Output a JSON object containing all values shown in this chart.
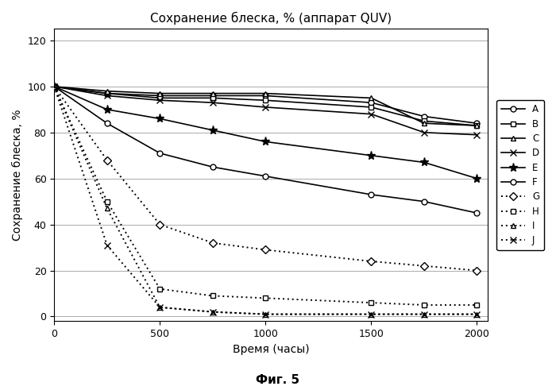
{
  "title": "Сохранение блеска, % (аппарат QUV)",
  "xlabel": "Время (часы)",
  "ylabel": "Сохранение блеска, %",
  "caption": "Фиг. 5",
  "xlim": [
    0,
    2050
  ],
  "ylim": [
    -2,
    125
  ],
  "xticks": [
    0,
    500,
    1000,
    1500,
    2000
  ],
  "yticks": [
    0,
    20,
    40,
    60,
    80,
    100,
    120
  ],
  "series": {
    "A": {
      "x": [
        0,
        250,
        500,
        750,
        1000,
        1500,
        1750,
        2000
      ],
      "y": [
        100,
        97,
        96,
        96,
        96,
        93,
        87,
        84
      ],
      "linestyle": "solid",
      "marker": "o",
      "markersize": 5,
      "open": true,
      "linewidth": 1.2
    },
    "B": {
      "x": [
        0,
        250,
        500,
        750,
        1000,
        1500,
        1750,
        2000
      ],
      "y": [
        100,
        97,
        95,
        95,
        94,
        91,
        85,
        83
      ],
      "linestyle": "solid",
      "marker": "s",
      "markersize": 5,
      "open": true,
      "linewidth": 1.2
    },
    "C": {
      "x": [
        0,
        250,
        500,
        750,
        1000,
        1500,
        1750,
        2000
      ],
      "y": [
        100,
        98,
        97,
        97,
        97,
        95,
        84,
        83
      ],
      "linestyle": "solid",
      "marker": "^",
      "markersize": 5,
      "open": true,
      "linewidth": 1.2
    },
    "D": {
      "x": [
        0,
        250,
        500,
        750,
        1000,
        1500,
        1750,
        2000
      ],
      "y": [
        100,
        96,
        94,
        93,
        91,
        88,
        80,
        79
      ],
      "linestyle": "solid",
      "marker": "x",
      "markersize": 6,
      "open": false,
      "linewidth": 1.2
    },
    "E": {
      "x": [
        0,
        250,
        500,
        750,
        1000,
        1500,
        1750,
        2000
      ],
      "y": [
        100,
        90,
        86,
        81,
        76,
        70,
        67,
        60
      ],
      "linestyle": "solid",
      "marker": "*",
      "markersize": 8,
      "open": false,
      "linewidth": 1.2
    },
    "F": {
      "x": [
        0,
        250,
        500,
        750,
        1000,
        1500,
        1750,
        2000
      ],
      "y": [
        100,
        84,
        71,
        65,
        61,
        53,
        50,
        45
      ],
      "linestyle": "solid",
      "marker": "o",
      "markersize": 5,
      "open": true,
      "linewidth": 1.2
    },
    "G": {
      "x": [
        0,
        250,
        500,
        750,
        1000,
        1500,
        1750,
        2000
      ],
      "y": [
        100,
        68,
        40,
        32,
        29,
        24,
        22,
        20
      ],
      "linestyle": "dotted",
      "marker": "D",
      "markersize": 5,
      "open": true,
      "linewidth": 1.4
    },
    "H": {
      "x": [
        0,
        250,
        500,
        750,
        1000,
        1500,
        1750,
        2000
      ],
      "y": [
        100,
        50,
        12,
        9,
        8,
        6,
        5,
        5
      ],
      "linestyle": "dotted",
      "marker": "s",
      "markersize": 5,
      "open": true,
      "linewidth": 1.4
    },
    "I": {
      "x": [
        0,
        250,
        500,
        750,
        1000,
        1500,
        1750,
        2000
      ],
      "y": [
        100,
        47,
        4,
        2,
        1,
        1,
        1,
        1
      ],
      "linestyle": "dotted",
      "marker": "^",
      "markersize": 5,
      "open": true,
      "linewidth": 1.4
    },
    "J": {
      "x": [
        0,
        250,
        500,
        750,
        1000,
        1500,
        1750,
        2000
      ],
      "y": [
        100,
        31,
        4,
        2,
        1,
        1,
        1,
        1
      ],
      "linestyle": "dotted",
      "marker": "x",
      "markersize": 6,
      "open": false,
      "linewidth": 1.4
    }
  }
}
